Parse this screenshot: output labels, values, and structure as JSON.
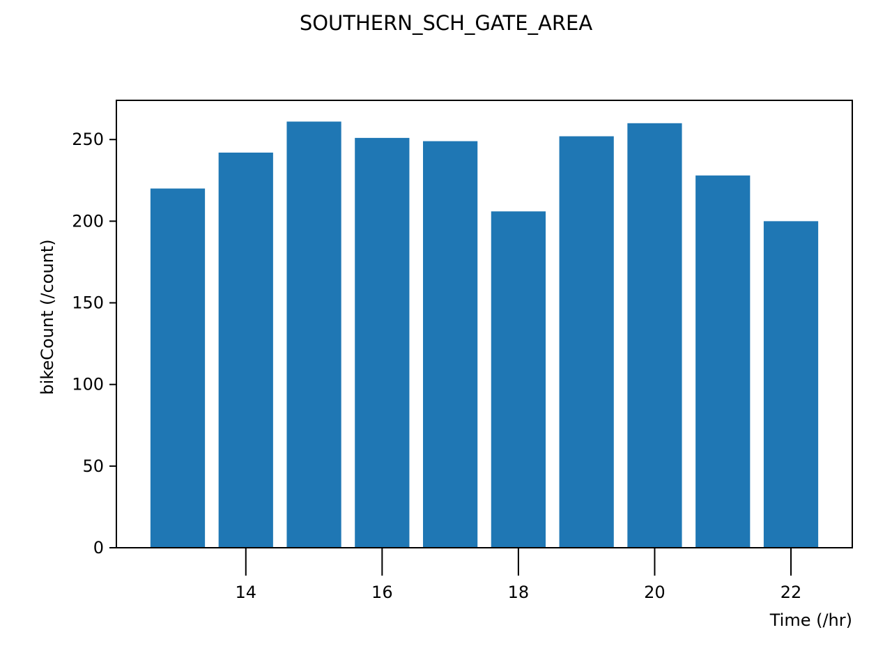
{
  "chart_data": {
    "type": "bar",
    "title": "SOUTHERN_SCH_GATE_AREA",
    "xlabel": "Time (/hr)",
    "ylabel": "bikeCount (/count)",
    "x": [
      13,
      14,
      15,
      16,
      17,
      18,
      19,
      20,
      21,
      22
    ],
    "values": [
      220,
      242,
      261,
      251,
      249,
      206,
      252,
      260,
      228,
      200
    ],
    "xlim": [
      12.1,
      22.9
    ],
    "ylim": [
      0,
      274
    ],
    "xticks": [
      14,
      16,
      18,
      20,
      22
    ],
    "xtick_labels": [
      "14",
      "16",
      "18",
      "20",
      "22"
    ],
    "yticks": [
      0,
      50,
      100,
      150,
      200,
      250
    ],
    "ytick_labels": [
      "0",
      "50",
      "100",
      "150",
      "200",
      "250"
    ],
    "bar_width": 0.8,
    "bar_color": "#1f77b4",
    "grid": false,
    "legend": "none"
  }
}
